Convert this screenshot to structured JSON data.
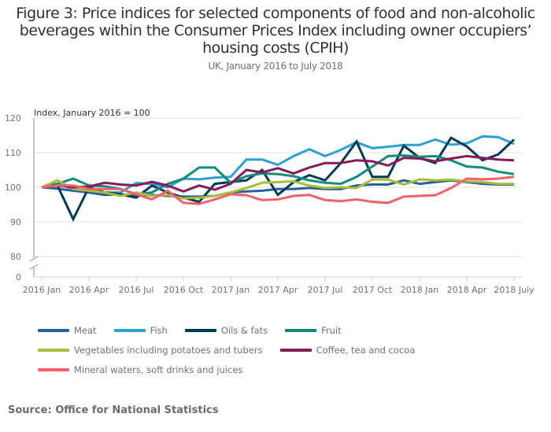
{
  "header": {
    "title": "Figure 3: Price indices for selected components of food and non-alcoholic beverages within the Consumer Prices Index including owner occupiers’ housing costs (CPIH)",
    "subtitle": "UK, January 2016 to July 2018"
  },
  "footer": {
    "source": "Source: Office for National Statistics"
  },
  "chart_data": {
    "type": "line",
    "title": "Figure 3: Price indices for selected components of food and non-alcoholic beverages within the Consumer Prices Index including owner occupiers’ housing costs (CPIH)",
    "subtitle": "UK, January 2016 to July 2018",
    "xlabel": "",
    "ylabel": "Index, January 2016 = 100",
    "ylim": [
      80,
      120
    ],
    "y_axis_break": true,
    "y_ticks": [
      "120",
      "110",
      "100",
      "90",
      "80",
      "0"
    ],
    "x_tick_labels": [
      "2016 Jan",
      "2016 Apr",
      "2016 Jul",
      "2016 Oct",
      "2017 Jan",
      "2017 Apr",
      "2017 Jul",
      "2017 Oct",
      "2018 Jan",
      "2018 Apr",
      "2018 July"
    ],
    "x": [
      "2016-01",
      "2016-02",
      "2016-03",
      "2016-04",
      "2016-05",
      "2016-06",
      "2016-07",
      "2016-08",
      "2016-09",
      "2016-10",
      "2016-11",
      "2016-12",
      "2017-01",
      "2017-02",
      "2017-03",
      "2017-04",
      "2017-05",
      "2017-06",
      "2017-07",
      "2017-08",
      "2017-09",
      "2017-10",
      "2017-11",
      "2017-12",
      "2018-01",
      "2018-02",
      "2018-03",
      "2018-04",
      "2018-05",
      "2018-06",
      "2018-07"
    ],
    "grid": true,
    "legend_position": "bottom",
    "series": [
      {
        "name": "Meat",
        "color": "#27609c",
        "values": [
          100,
          99.6,
          99,
          98.5,
          97.8,
          98,
          97.5,
          97.8,
          97.5,
          97.3,
          97.3,
          97.5,
          98.5,
          98.8,
          99,
          99.5,
          99.5,
          99.8,
          99.5,
          99.5,
          100.5,
          100.8,
          100.8,
          102,
          101,
          101.5,
          102,
          101.5,
          101,
          100.8,
          100.8
        ]
      },
      {
        "name": "Fish",
        "color": "#2ea1d3",
        "values": [
          100,
          101,
          99.5,
          99,
          98.5,
          98.5,
          101.2,
          101,
          100,
          102.5,
          102.3,
          102.8,
          103,
          108,
          108,
          106.5,
          109,
          111,
          109,
          110.8,
          113,
          111.3,
          111.7,
          112.2,
          112.2,
          113.8,
          112.3,
          112.7,
          114.7,
          114.5,
          112.5
        ]
      },
      {
        "name": "Oils & fats",
        "color": "#003c57",
        "values": [
          100,
          100.5,
          90.8,
          100,
          98.5,
          98,
          97,
          100.5,
          98.5,
          97,
          95.8,
          101,
          101.5,
          102,
          105,
          97.8,
          101.5,
          103.5,
          102,
          107,
          113.2,
          103,
          103,
          112,
          108.5,
          107,
          114.3,
          111.8,
          107.8,
          109.5,
          113.8
        ]
      },
      {
        "name": "Fruit",
        "color": "#118c7b",
        "values": [
          100,
          101,
          102.5,
          100.5,
          100.3,
          99.5,
          98,
          98.5,
          101,
          102.5,
          105.7,
          105.7,
          101.3,
          103.2,
          104,
          103.8,
          103.2,
          102,
          101.3,
          101,
          103,
          106,
          109,
          109.2,
          108.8,
          109,
          107.8,
          106,
          105.7,
          104.5,
          103.8
        ]
      },
      {
        "name": "Vegetables including potatoes and tubers",
        "color": "#a8bd3a",
        "values": [
          100,
          102,
          99.5,
          99,
          98.5,
          97.5,
          98.5,
          97.5,
          97.8,
          96.8,
          97,
          97.5,
          98.5,
          99.8,
          101.3,
          101.5,
          101.7,
          100.5,
          99.8,
          100,
          99.8,
          102.2,
          102.2,
          100.8,
          102.3,
          102,
          102.2,
          101.7,
          101.5,
          101,
          101
        ]
      },
      {
        "name": "Coffee, tea and cocoa",
        "color": "#871a5b",
        "values": [
          100,
          100.5,
          100,
          100.2,
          101.3,
          100.8,
          100.5,
          101.6,
          100.5,
          98.8,
          100.5,
          99.3,
          101,
          105,
          104.3,
          105.5,
          104,
          105.7,
          107,
          107,
          107.8,
          107.5,
          106.3,
          108.5,
          108.3,
          107.5,
          108.3,
          109,
          108.5,
          108,
          107.8
        ]
      },
      {
        "name": "Mineral waters, soft drinks and juices",
        "color": "#f66068",
        "values": [
          100,
          100.5,
          100.5,
          99.5,
          99.5,
          99.5,
          98,
          96.5,
          99,
          95.5,
          95.2,
          96.5,
          98,
          97.7,
          96.3,
          96.5,
          97.5,
          97.8,
          96.3,
          96,
          96.5,
          95.8,
          95.5,
          97.3,
          97.5,
          97.7,
          99.8,
          102.5,
          102.3,
          102.5,
          103
        ]
      }
    ],
    "legend_rows": [
      [
        0,
        1,
        2,
        3
      ],
      [
        4,
        5
      ],
      [
        6
      ]
    ]
  }
}
